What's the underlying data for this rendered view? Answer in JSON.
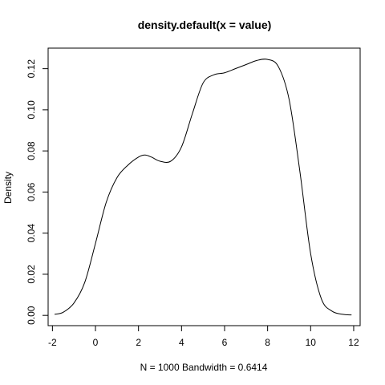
{
  "chart_data": {
    "type": "line",
    "title": "density.default(x = value)",
    "xlabel": "N = 1000   Bandwidth = 0.6414",
    "ylabel": "Density",
    "xlim": [
      -2.2,
      12.3
    ],
    "ylim": [
      -0.005,
      0.13
    ],
    "x_ticks": [
      -2,
      0,
      2,
      4,
      6,
      8,
      10,
      12
    ],
    "y_ticks": [
      0.0,
      0.02,
      0.04,
      0.06,
      0.08,
      0.1,
      0.12
    ],
    "x_tick_labels": [
      "-2",
      "0",
      "2",
      "4",
      "6",
      "8",
      "10",
      "12"
    ],
    "y_tick_labels": [
      "0.00",
      "0.02",
      "0.04",
      "0.06",
      "0.08",
      "0.10",
      "0.12"
    ],
    "grid": false,
    "legend": "none",
    "series": [
      {
        "x": [
          -1.9,
          -1.5,
          -1.0,
          -0.5,
          0.0,
          0.5,
          1.0,
          1.5,
          2.0,
          2.3,
          2.6,
          3.0,
          3.5,
          4.0,
          4.5,
          5.0,
          5.5,
          6.0,
          6.5,
          7.0,
          7.5,
          8.0,
          8.5,
          9.0,
          9.5,
          10.0,
          10.5,
          11.0,
          11.5,
          11.9
        ],
        "y": [
          0.0005,
          0.0015,
          0.006,
          0.016,
          0.035,
          0.055,
          0.067,
          0.073,
          0.077,
          0.078,
          0.077,
          0.075,
          0.075,
          0.082,
          0.098,
          0.113,
          0.117,
          0.118,
          0.12,
          0.122,
          0.124,
          0.1245,
          0.121,
          0.105,
          0.07,
          0.03,
          0.008,
          0.002,
          0.0005,
          0.0002
        ]
      }
    ]
  }
}
